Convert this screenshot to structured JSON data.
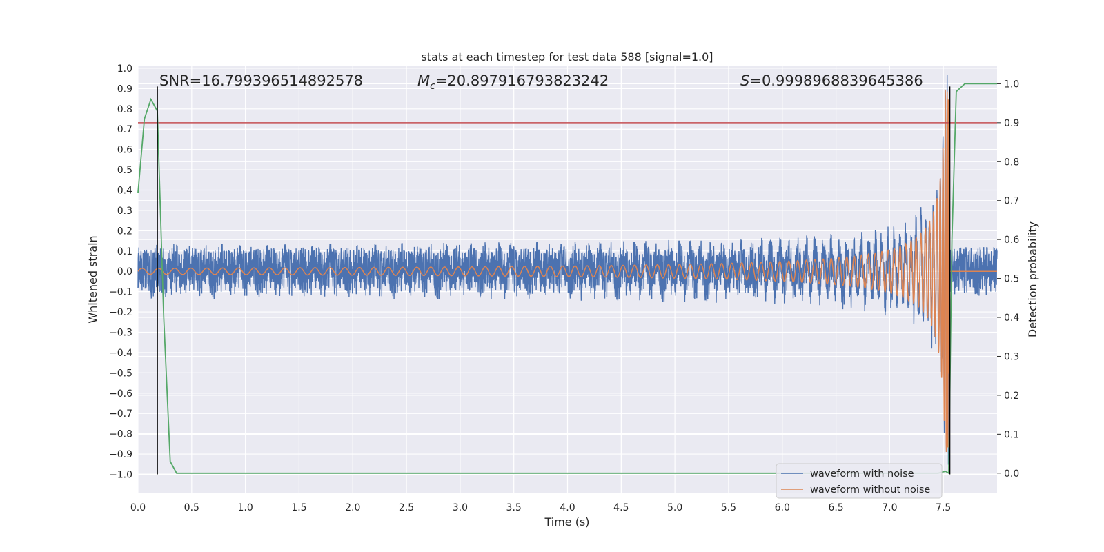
{
  "chart_data": {
    "type": "line",
    "title": "stats at each timestep for test data 588 [signal=1.0]",
    "xlabel": "Time (s)",
    "ylabel": "Whitened strain",
    "y2label": "Detection probability",
    "xlim": [
      0.0,
      8.0
    ],
    "ylim": [
      -1.09,
      1.01
    ],
    "y2lim": [
      -0.05,
      1.045
    ],
    "xticks": [
      0.0,
      0.5,
      1.0,
      1.5,
      2.0,
      2.5,
      3.0,
      3.5,
      4.0,
      4.5,
      5.0,
      5.5,
      6.0,
      6.5,
      7.0,
      7.5
    ],
    "xtick_labels": [
      "0.0",
      "0.5",
      "1.0",
      "1.5",
      "2.0",
      "2.5",
      "3.0",
      "3.5",
      "4.0",
      "4.5",
      "5.0",
      "5.5",
      "6.0",
      "6.5",
      "7.0",
      "7.5"
    ],
    "yticks": [
      1.0,
      0.9,
      0.8,
      0.7,
      0.6,
      0.5,
      0.4,
      0.3,
      0.2,
      0.1,
      0.0,
      -0.1,
      -0.2,
      -0.3,
      -0.4,
      -0.5,
      -0.6,
      -0.7,
      -0.8,
      -0.9,
      -1.0
    ],
    "ytick_labels": [
      "1.0",
      "0.9",
      "0.8",
      "0.7",
      "0.6",
      "0.5",
      "0.4",
      "0.3",
      "0.2",
      "0.1",
      "0.0",
      "−0.1",
      "−0.2",
      "−0.3",
      "−0.4",
      "−0.5",
      "−0.6",
      "−0.7",
      "−0.8",
      "−0.9",
      "−1.0"
    ],
    "y2ticks": [
      1.0,
      0.9,
      0.8,
      0.7,
      0.6,
      0.5,
      0.4,
      0.3,
      0.2,
      0.1,
      0.0
    ],
    "y2tick_labels": [
      "1.0",
      "0.9",
      "0.8",
      "0.7",
      "0.6",
      "0.5",
      "0.4",
      "0.3",
      "0.2",
      "0.1",
      "0.0"
    ],
    "grid": true,
    "legend_location": "lower-right",
    "annotations": {
      "snr": "SNR=16.799396514892578",
      "mc_symbol": "M",
      "mc_subscript": "c",
      "mc_value": "=20.897916793823242",
      "s_symbol": "S",
      "s_value": "=0.9998968839645386"
    },
    "series": [
      {
        "name": "waveform with noise",
        "color": "#4c72b0",
        "description_shape": "noise band about ±0.12 across the whole record, growing chirp envelope near merger",
        "noise_amplitude": 0.12,
        "merger_time": 7.55,
        "peak_amplitude": -0.95
      },
      {
        "name": "waveform without noise",
        "color": "#dd8452",
        "shape": "chirp",
        "start_amplitude": 0.015,
        "end_amplitude": 0.9,
        "merger_time": 7.55,
        "post_merger_value": 0.0
      },
      {
        "name": "",
        "color": "#55a868",
        "axis": "right",
        "x": [
          0.0,
          0.06,
          0.12,
          0.18,
          0.24,
          0.3,
          0.36,
          0.42,
          7.45,
          7.52,
          7.55,
          7.58,
          7.62,
          7.7,
          8.0
        ],
        "y": [
          0.72,
          0.91,
          0.96,
          0.93,
          0.4,
          0.03,
          0.0,
          0.0,
          0.0,
          0.005,
          0.0,
          0.6,
          0.98,
          1.0,
          1.0
        ]
      }
    ],
    "threshold_line": {
      "axis": "right",
      "value": 0.9,
      "color": "#c44e52"
    },
    "vertical_markers": [
      {
        "x": 0.18,
        "y_from": -1.0,
        "y_to": 0.91,
        "color": "#000000"
      },
      {
        "x": 7.56,
        "y_from": -1.0,
        "y_to": 0.91,
        "color": "#000000"
      }
    ]
  }
}
